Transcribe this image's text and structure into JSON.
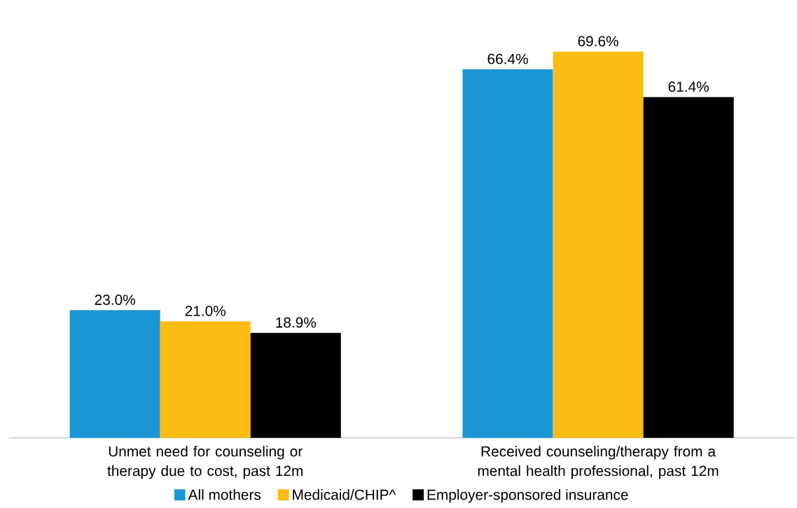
{
  "chart_data": {
    "type": "bar",
    "categories": [
      "Unmet need for counseling or therapy due to cost, past 12m",
      "Received counseling/therapy from a mental health professional, past 12m"
    ],
    "series": [
      {
        "name": "All mothers",
        "color": "#1b96d4",
        "values": [
          23.0,
          66.4
        ],
        "value_labels": [
          "23.0%",
          "66.4%"
        ]
      },
      {
        "name": "Medicaid/CHIP^",
        "color": "#fbbc14",
        "values": [
          21.0,
          69.6
        ],
        "value_labels": [
          "21.0%",
          "69.6%"
        ]
      },
      {
        "name": "Employer-sponsored insurance",
        "color": "#000000",
        "values": [
          18.9,
          61.4
        ],
        "value_labels": [
          "18.9%",
          "61.4%"
        ]
      }
    ],
    "legend": "bottom"
  }
}
